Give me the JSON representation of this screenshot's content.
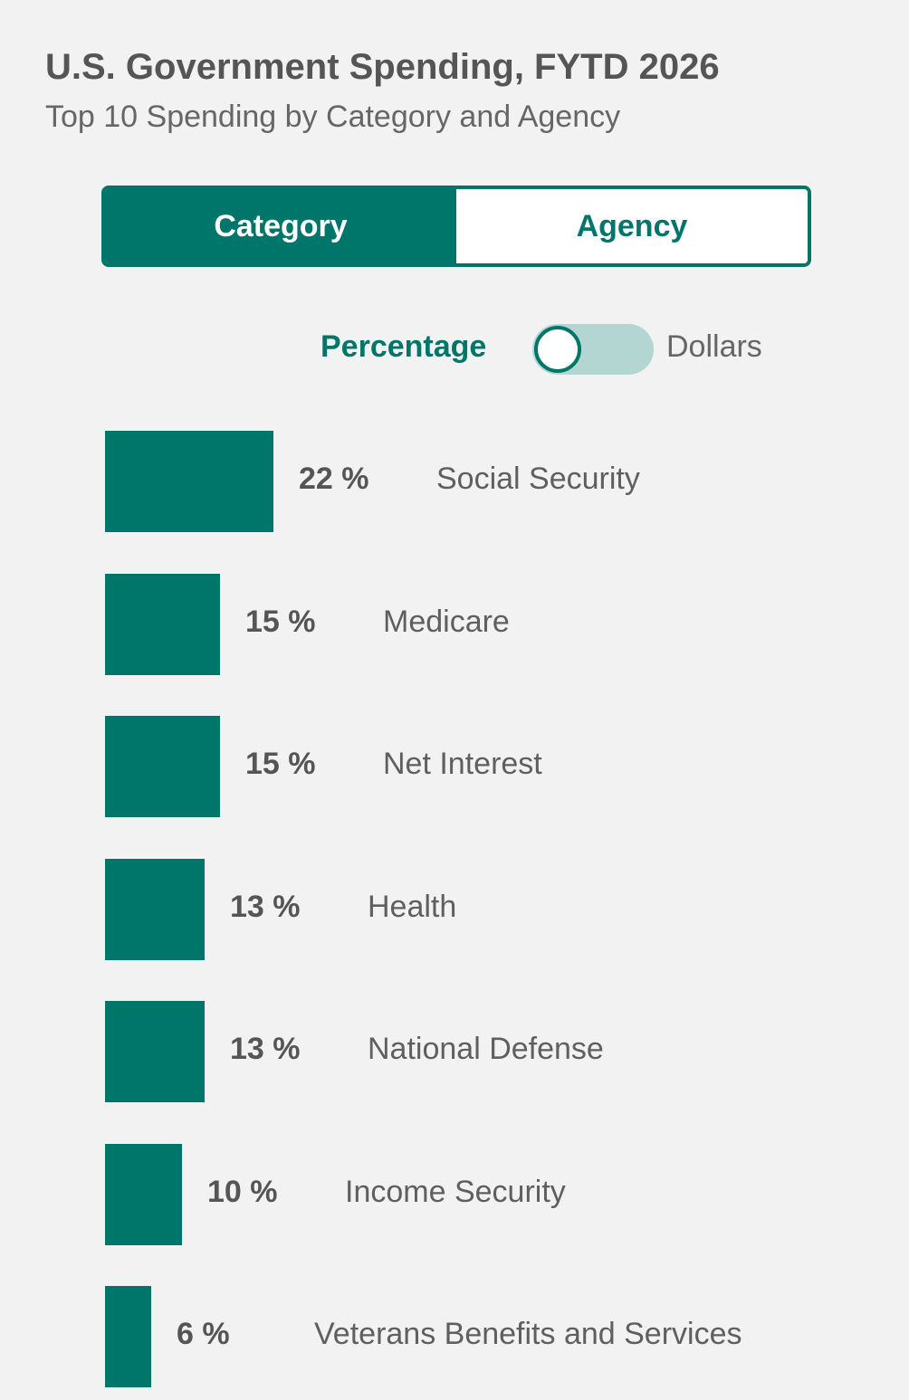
{
  "header": {
    "title": "U.S. Government Spending, FYTD 2026",
    "subtitle": "Top 10 Spending by Category and Agency"
  },
  "tabs": [
    {
      "label": "Category",
      "active": true
    },
    {
      "label": "Agency",
      "active": false
    }
  ],
  "toggle": {
    "left_label": "Percentage",
    "right_label": "Dollars",
    "selected": "Percentage"
  },
  "colors": {
    "accent": "#00756a",
    "toggle_track": "#b3d6d3"
  },
  "chart_data": {
    "type": "bar",
    "orientation": "horizontal",
    "categories": [
      "Social Security",
      "Medicare",
      "Net Interest",
      "Health",
      "National Defense",
      "Income Security",
      "Veterans Benefits and Services"
    ],
    "values": [
      22,
      15,
      15,
      13,
      13,
      10,
      6
    ],
    "value_labels": [
      "22 %",
      "15 %",
      "15 %",
      "13 %",
      "13 %",
      "10 %",
      "6 %"
    ],
    "unit": "%",
    "xlim": [
      0,
      100
    ]
  }
}
